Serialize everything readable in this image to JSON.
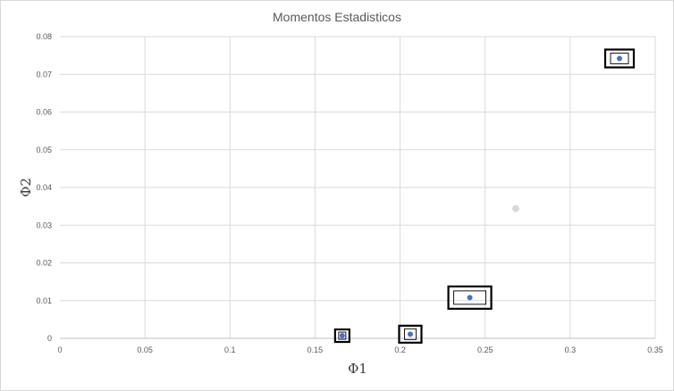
{
  "chart_data": {
    "type": "scatter",
    "title": "Momentos Estadisticos",
    "xlabel": "Φ1",
    "ylabel": "Φ2",
    "xlim": [
      0,
      0.35
    ],
    "ylim": [
      0,
      0.08
    ],
    "x_ticks": [
      "0",
      "0.05",
      "0.1",
      "0.15",
      "0.2",
      "0.25",
      "0.3",
      "0.35"
    ],
    "y_ticks": [
      "0",
      "0.01",
      "0.02",
      "0.03",
      "0.04",
      "0.05",
      "0.06",
      "0.07",
      "0.08"
    ],
    "grid": true,
    "legend": "none",
    "series": [
      {
        "color": "#4472c4",
        "points": [
          {
            "x": 0.166,
            "y": 0.0007
          },
          {
            "x": 0.206,
            "y": 0.0011
          },
          {
            "x": 0.241,
            "y": 0.0108
          },
          {
            "x": 0.329,
            "y": 0.0742
          }
        ]
      }
    ],
    "faint_points": [
      {
        "x": 0.268,
        "y": 0.0344,
        "color": "#d9d9d9"
      }
    ]
  }
}
